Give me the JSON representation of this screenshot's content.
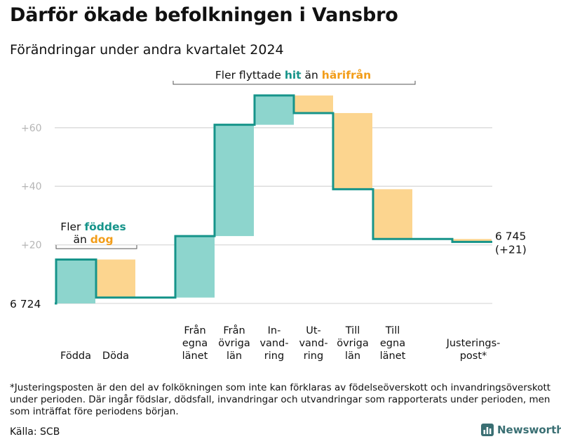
{
  "title": "Därför ökade befolkningen i Vansbro",
  "subtitle": "Förändringar under andra kvartalet 2024",
  "chart_data": {
    "type": "bar",
    "subtype": "waterfall",
    "start_value": 6724,
    "start_label": "6 724",
    "end_value": 6745,
    "end_label": "6 745",
    "end_change_label": "(+21)",
    "ylim": [
      0,
      72
    ],
    "yticks": [
      20,
      40,
      60
    ],
    "ytick_labels": [
      "+20",
      "+40",
      "+60"
    ],
    "grid": true,
    "categories": [
      {
        "label": [
          "Födda"
        ],
        "value": 15
      },
      {
        "label": [
          "Döda"
        ],
        "value": -13
      },
      {
        "label": [
          "Från",
          "egna",
          "länet"
        ],
        "value": 21
      },
      {
        "label": [
          "Från",
          "övriga",
          "län"
        ],
        "value": 38
      },
      {
        "label": [
          "In-",
          "vand-",
          "ring"
        ],
        "value": 10
      },
      {
        "label": [
          "Ut-",
          "vand-",
          "ring"
        ],
        "value": -6
      },
      {
        "label": [
          "Till",
          "övriga",
          "län"
        ],
        "value": -26
      },
      {
        "label": [
          "Till",
          "egna",
          "länet"
        ],
        "value": -17
      },
      {
        "label": [
          "Justerings-",
          "post*"
        ],
        "value": -1
      }
    ],
    "colors": {
      "increase": "#8dd5cd",
      "decrease": "#fcd58f",
      "line": "#16948a",
      "grid": "#d9d9d9",
      "bracket": "#555555"
    },
    "annotations": [
      {
        "parts": [
          "Fler",
          "föddes"
        ],
        "line2": [
          "än",
          "dog"
        ]
      },
      {
        "parts": [
          "Fler flyttade",
          "hit",
          "än",
          "härifrån"
        ]
      }
    ]
  },
  "footnote": "*Justeringsposten är den del av folkökningen som inte kan förklaras av födelseöverskott och invandringsöverskott under perioden. Där ingår födslar, dödsfall, invandringar och utvandringar som rapporterats under perioden, men som inträffat före periodens början.",
  "source": "Källa: SCB",
  "brand": {
    "name": "Newsworthy",
    "icon": "bar-chart-icon"
  }
}
